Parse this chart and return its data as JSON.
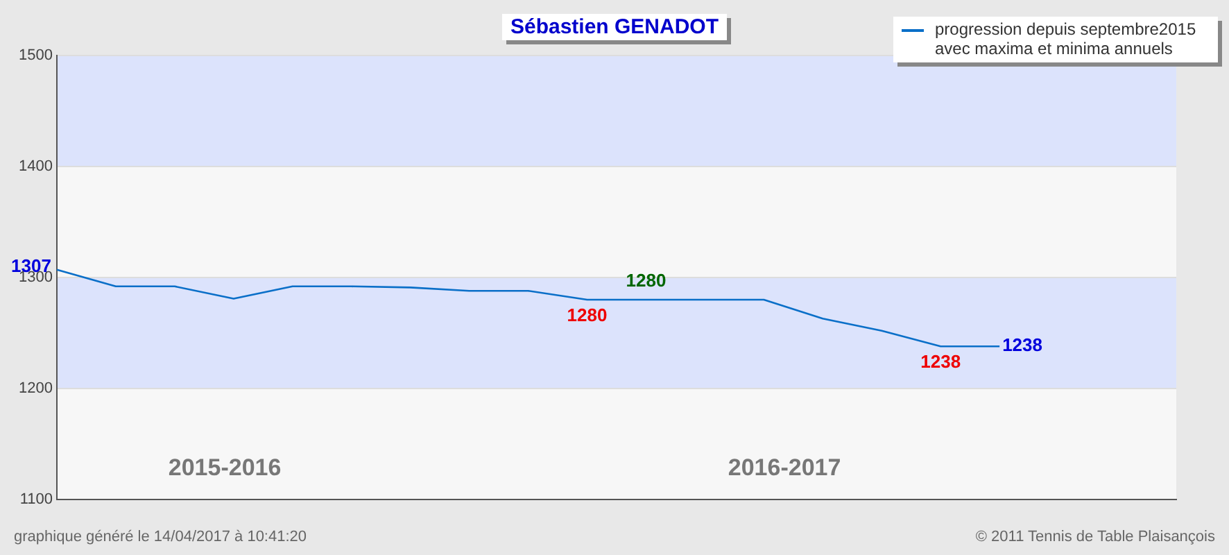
{
  "chart_data": {
    "type": "line",
    "title": "Sébastien GENADOT",
    "categories": [
      null,
      null,
      null,
      null,
      null,
      null,
      null,
      null,
      null,
      null,
      null,
      null,
      null,
      null,
      null,
      null,
      null,
      null,
      null,
      null
    ],
    "series": [
      {
        "name": "progression depuis septembre2015 avec maxima et minima annuels",
        "color": "#0a6fc8",
        "values": [
          1307,
          1292,
          1292,
          1281,
          1292,
          1292,
          1291,
          1288,
          1288,
          1280,
          1280,
          1280,
          1280,
          1263,
          1252,
          1238,
          1238,
          null,
          null,
          null
        ],
        "value_labels": [
          "1307",
          null,
          null,
          null,
          null,
          null,
          null,
          null,
          null,
          "1280",
          "1280",
          null,
          null,
          null,
          null,
          "1238",
          "1238",
          null,
          null,
          null
        ]
      }
    ],
    "ylim": [
      1100,
      1500
    ],
    "yticks": [
      1100,
      1200,
      1300,
      1400,
      1500
    ],
    "grid": "y",
    "tick_labels": "y",
    "legend": "top right",
    "marker": "none",
    "line_style": "solid",
    "bands": [
      {
        "axis": "y",
        "from": 1200,
        "to": 1300,
        "color": "#dce3fc"
      },
      {
        "axis": "y",
        "from": 1400,
        "to": 1500,
        "color": "#dce3fc"
      }
    ],
    "annotations": [
      "2015-2016",
      "2016-2017",
      "graphique généré le 14/04/2017 à 10:41:20",
      "© 2011 Tennis de Table Plaisançois"
    ]
  }
}
